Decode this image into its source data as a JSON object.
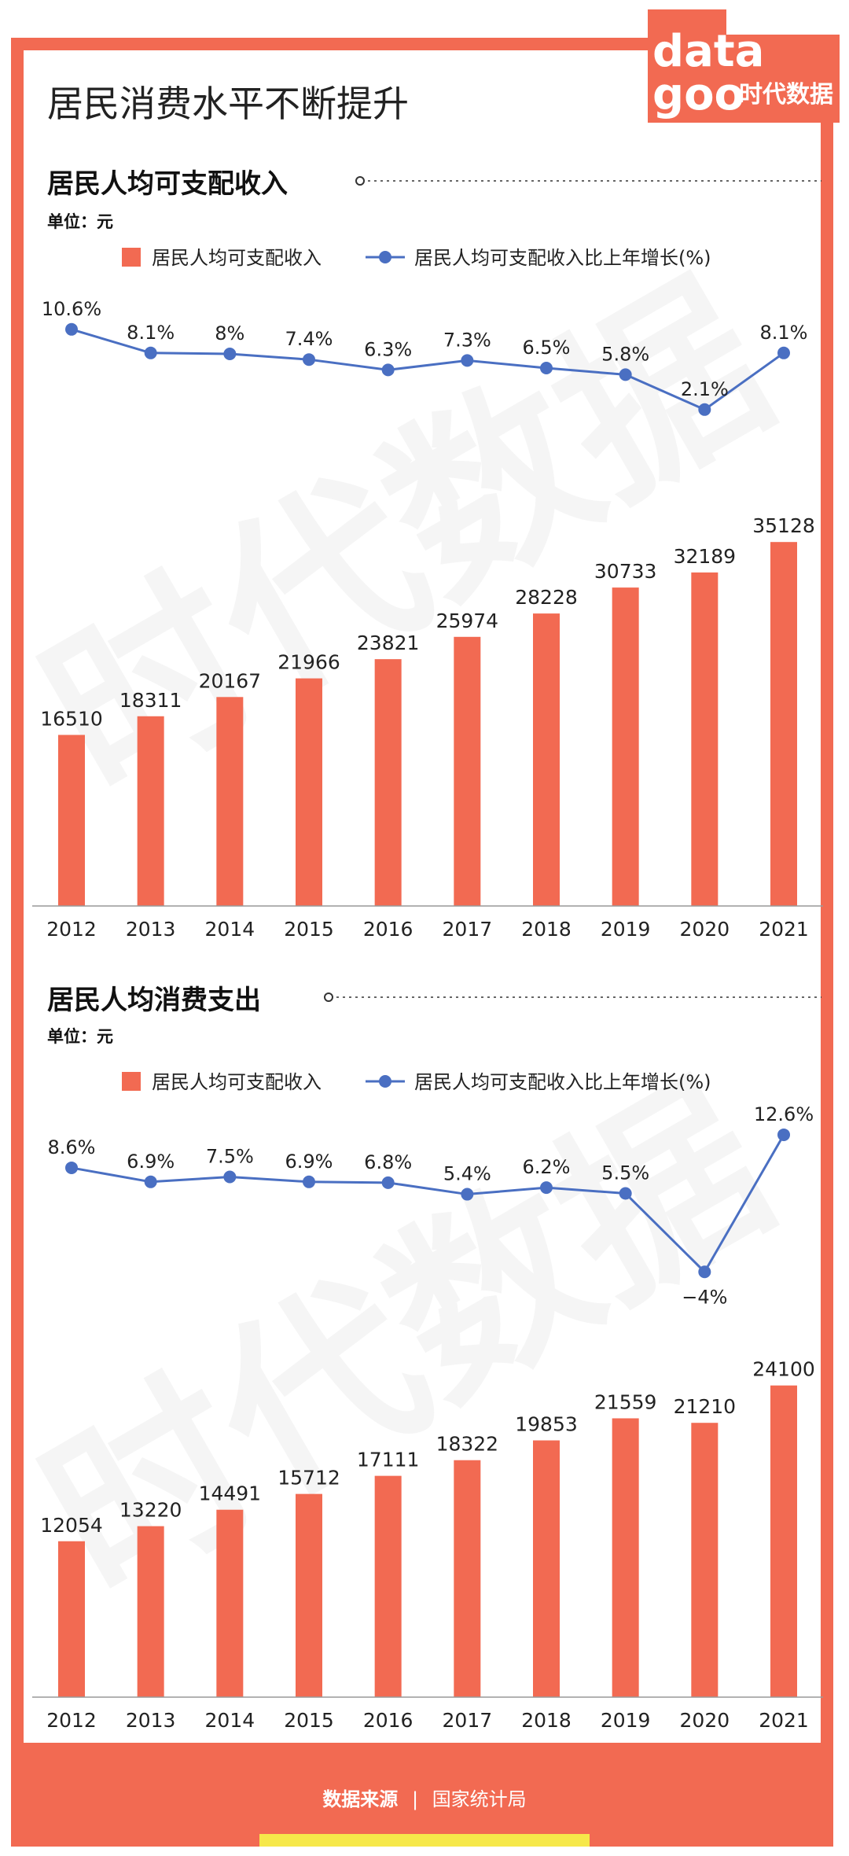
{
  "page": {
    "title": "居民消费水平不断提升",
    "logo_word1": "data",
    "logo_word2": "goo",
    "logo_brand": "时代数据",
    "watermark": "时代数据"
  },
  "colors": {
    "frame": "#f26a52",
    "bar": "#f26a52",
    "line": "#4a6fc2",
    "footer_strip": "#f6e84a"
  },
  "sections": [
    {
      "title": "居民人均可支配收入",
      "unit": "单位：元"
    },
    {
      "title": "居民人均消费支出",
      "unit": "单位：元"
    }
  ],
  "footer": {
    "source_label": "数据来源",
    "separator": "|",
    "source_value": "国家统计局"
  },
  "chart_data": [
    {
      "type": "bar",
      "title": "居民人均可支配收入",
      "categories": [
        "2012",
        "2013",
        "2014",
        "2015",
        "2016",
        "2017",
        "2018",
        "2019",
        "2020",
        "2021"
      ],
      "series": [
        {
          "name": "居民人均可支配收入",
          "type": "bar",
          "values": [
            16510,
            18311,
            20167,
            21966,
            23821,
            25974,
            28228,
            30733,
            32189,
            35128
          ],
          "labels": [
            "16510",
            "18311",
            "20167",
            "21966",
            "23821",
            "25974",
            "28228",
            "30733",
            "32189",
            "35128"
          ]
        },
        {
          "name": "居民人均可支配收入比上年增长(%)",
          "type": "line",
          "values": [
            10.6,
            8.1,
            8,
            7.4,
            6.3,
            7.3,
            6.5,
            5.8,
            2.1,
            8.1
          ],
          "labels": [
            "10.6%",
            "8.1%",
            "8%",
            "7.4%",
            "6.3%",
            "7.3%",
            "6.5%",
            "5.8%",
            "2.1%",
            "8.1%"
          ]
        }
      ],
      "ylim": [
        0,
        40000
      ],
      "legend": "top-center",
      "grid": false
    },
    {
      "type": "bar",
      "title": "居民人均消费支出",
      "categories": [
        "2012",
        "2013",
        "2014",
        "2015",
        "2016",
        "2017",
        "2018",
        "2019",
        "2020",
        "2021"
      ],
      "series": [
        {
          "name": "居民人均可支配收入",
          "type": "bar",
          "values": [
            12054,
            13220,
            14491,
            15712,
            17111,
            18322,
            19853,
            21559,
            21210,
            24100
          ],
          "labels": [
            "12054",
            "13220",
            "14491",
            "15712",
            "17111",
            "18322",
            "19853",
            "21559",
            "21210",
            "24100"
          ]
        },
        {
          "name": "居民人均可支配收入比上年增长(%)",
          "type": "line",
          "values": [
            8.6,
            6.9,
            7.5,
            6.9,
            6.8,
            5.4,
            6.2,
            5.5,
            -4,
            12.6
          ],
          "labels": [
            "8.6%",
            "6.9%",
            "7.5%",
            "6.9%",
            "6.8%",
            "5.4%",
            "6.2%",
            "5.5%",
            "−4%",
            "12.6%"
          ]
        }
      ],
      "ylim": [
        0,
        27000
      ],
      "legend": "top-center",
      "grid": false
    }
  ]
}
